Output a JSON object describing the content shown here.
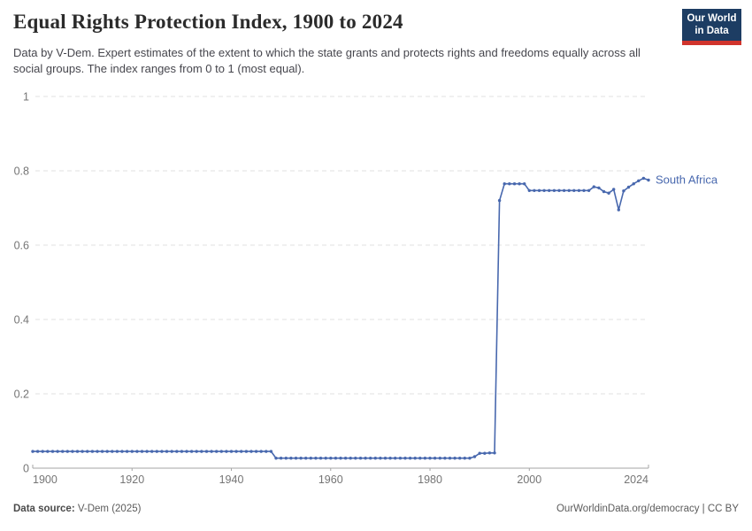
{
  "header": {
    "title": "Equal Rights Protection Index, 1900 to 2024",
    "subtitle": "Data by V-Dem. Expert estimates of the extent to which the state grants and protects rights and freedoms equally across all social groups. The index ranges from 0 to 1 (most equal).",
    "logo": {
      "line1": "Our World",
      "line2": "in Data",
      "bg_color": "#1d3d63",
      "accent_color": "#d0342c"
    }
  },
  "chart_data": {
    "type": "line",
    "title": "Equal Rights Protection Index, 1900 to 2024",
    "xlabel": "",
    "ylabel": "",
    "xlim": [
      1900,
      2024
    ],
    "ylim": [
      0,
      1
    ],
    "grid": "horizontal-dashed",
    "grid_color": "#e0e0e0",
    "xticks": [
      1900,
      1920,
      1940,
      1960,
      1980,
      2000,
      2024
    ],
    "yticks": [
      {
        "value": 0,
        "label": "0"
      },
      {
        "value": 0.2,
        "label": "0.2"
      },
      {
        "value": 0.4,
        "label": "0.4"
      },
      {
        "value": 0.6,
        "label": "0.6"
      },
      {
        "value": 0.8,
        "label": "0.8"
      },
      {
        "value": 1,
        "label": "1"
      }
    ],
    "series": [
      {
        "name": "South Africa",
        "color": "#4868ae",
        "x_start": 1900,
        "x_step": 1,
        "values": [
          0.045,
          0.045,
          0.045,
          0.045,
          0.045,
          0.045,
          0.045,
          0.045,
          0.045,
          0.045,
          0.045,
          0.045,
          0.045,
          0.045,
          0.045,
          0.045,
          0.045,
          0.045,
          0.045,
          0.045,
          0.045,
          0.045,
          0.045,
          0.045,
          0.045,
          0.045,
          0.045,
          0.045,
          0.045,
          0.045,
          0.045,
          0.045,
          0.045,
          0.045,
          0.045,
          0.045,
          0.045,
          0.045,
          0.045,
          0.045,
          0.045,
          0.045,
          0.045,
          0.045,
          0.045,
          0.045,
          0.045,
          0.045,
          0.045,
          0.027,
          0.027,
          0.027,
          0.027,
          0.027,
          0.027,
          0.027,
          0.027,
          0.027,
          0.027,
          0.027,
          0.027,
          0.027,
          0.027,
          0.027,
          0.027,
          0.027,
          0.027,
          0.027,
          0.027,
          0.027,
          0.027,
          0.027,
          0.027,
          0.027,
          0.027,
          0.027,
          0.027,
          0.027,
          0.027,
          0.027,
          0.027,
          0.027,
          0.027,
          0.027,
          0.027,
          0.027,
          0.027,
          0.027,
          0.027,
          0.031,
          0.04,
          0.04,
          0.041,
          0.041,
          0.72,
          0.765,
          0.765,
          0.765,
          0.765,
          0.765,
          0.747,
          0.747,
          0.747,
          0.747,
          0.747,
          0.747,
          0.747,
          0.747,
          0.747,
          0.747,
          0.747,
          0.747,
          0.747,
          0.757,
          0.754,
          0.744,
          0.74,
          0.75,
          0.695,
          0.746,
          0.756,
          0.765,
          0.773,
          0.78,
          0.775
        ]
      }
    ]
  },
  "footer": {
    "source_label": "Data source:",
    "source_value": " V-Dem (2025)",
    "right_text": "OurWorldinData.org/democracy | CC BY"
  }
}
